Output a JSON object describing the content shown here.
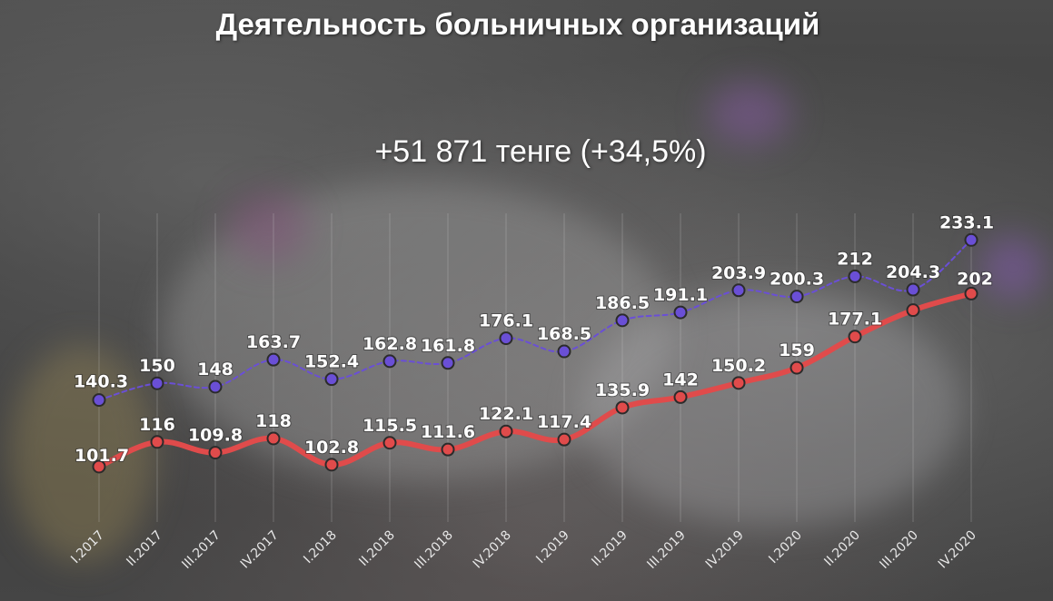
{
  "title": "Деятельность больничных организаций",
  "subtitle": "+51 871 тенге (+34,5%)",
  "colors": {
    "upper_series": "#6a4fd6",
    "lower_series": "#e04b4b",
    "point_stroke": "#2b2b2b",
    "label": "#ffffff",
    "grid": "#cfcfcf"
  },
  "chart_data": {
    "type": "line",
    "categories": [
      "I.2017",
      "II.2017",
      "III.2017",
      "IV.2017",
      "I.2018",
      "II.2018",
      "III.2018",
      "IV.2018",
      "I.2019",
      "II.2019",
      "III.2019",
      "IV.2019",
      "I.2020",
      "II.2020",
      "III.2020",
      "IV.2020"
    ],
    "series": [
      {
        "values": [
          140.3,
          150,
          148,
          163.7,
          152.4,
          162.8,
          161.8,
          176.1,
          168.5,
          186.5,
          191.1,
          203.9,
          200.3,
          212,
          204.3,
          233.1
        ],
        "labels": [
          "140.3",
          "150",
          "148",
          "163.7",
          "152.4",
          "162.8",
          "161.8",
          "176.1",
          "168.5",
          "186.5",
          "191.1",
          "203.9",
          "200.3",
          "212",
          "204.3",
          "233.1"
        ],
        "style": "dashed",
        "color": "#6a4fd6"
      },
      {
        "values": [
          101.7,
          116,
          109.8,
          118,
          102.8,
          115.5,
          111.6,
          122.1,
          117.4,
          135.9,
          142,
          150.2,
          159,
          177.1,
          192.4,
          202
        ],
        "labels": [
          "101.7",
          "116",
          "109.8",
          "118",
          "102.8",
          "115.5",
          "111.6",
          "122.1",
          "117.4",
          "135.9",
          "142",
          "150.2",
          "159",
          "177.1",
          "",
          "202"
        ],
        "style": "solid",
        "color": "#e04b4b"
      }
    ],
    "grid": "vertical",
    "legend": "none"
  }
}
